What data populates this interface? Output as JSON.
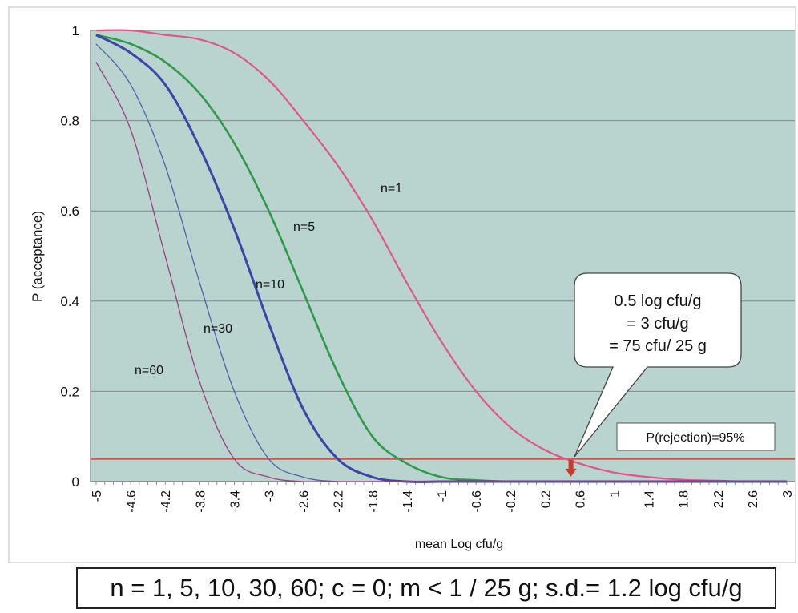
{
  "chart_data": {
    "type": "line",
    "xlabel": "mean Log cfu/g",
    "ylabel": "P (acceptance)",
    "xlim": [
      -5,
      3
    ],
    "ylim": [
      0,
      1
    ],
    "x_ticks": [
      "-5",
      "-4.6",
      "-4.2",
      "-3.8",
      "-3.4",
      "-3",
      "-2.6",
      "-2.2",
      "-1.8",
      "-1.4",
      "-1",
      "-0.6",
      "-0.2",
      "0.2",
      "0.6",
      "1",
      "1.4",
      "1.8",
      "2.2",
      "2.6",
      "3"
    ],
    "y_ticks": [
      "0",
      "0.2",
      "0.4",
      "0.6",
      "0.8",
      "1"
    ],
    "grid": "horizontal",
    "series": [
      {
        "name": "n=1",
        "color": "#e0558a",
        "x": [
          -5,
          -4.6,
          -4.2,
          -3.8,
          -3.4,
          -3,
          -2.6,
          -2.2,
          -1.8,
          -1.4,
          -1,
          -0.6,
          -0.2,
          0.2,
          0.6,
          1,
          1.4,
          1.8,
          2.2,
          2.6,
          3
        ],
        "y": [
          1,
          1,
          0.99,
          0.98,
          0.95,
          0.89,
          0.8,
          0.7,
          0.58,
          0.44,
          0.31,
          0.2,
          0.12,
          0.07,
          0.04,
          0.02,
          0.01,
          0.004,
          0.002,
          0,
          0
        ]
      },
      {
        "name": "n=5",
        "color": "#2f9a4a",
        "x": [
          -5,
          -4.6,
          -4.2,
          -3.8,
          -3.4,
          -3,
          -2.6,
          -2.2,
          -1.8,
          -1.4,
          -1,
          -0.6,
          -0.2,
          0.2,
          0.6,
          1,
          1.4,
          1.8,
          2.2,
          2.6,
          3
        ],
        "y": [
          0.99,
          0.97,
          0.93,
          0.86,
          0.75,
          0.6,
          0.42,
          0.24,
          0.1,
          0.04,
          0.01,
          0.003,
          0,
          0,
          0,
          0,
          0,
          0,
          0,
          0,
          0
        ]
      },
      {
        "name": "n=10",
        "color": "#3a47a8",
        "x": [
          -5,
          -4.6,
          -4.2,
          -3.8,
          -3.4,
          -3,
          -2.6,
          -2.2,
          -1.8,
          -1.4,
          -1,
          -0.6,
          -0.2,
          0.2,
          0.6,
          1,
          1.4,
          1.8,
          2.2,
          2.6,
          3
        ],
        "y": [
          0.99,
          0.95,
          0.88,
          0.74,
          0.56,
          0.35,
          0.16,
          0.05,
          0.01,
          0,
          0,
          0,
          0,
          0,
          0,
          0,
          0,
          0,
          0,
          0,
          0
        ]
      },
      {
        "name": "n=30",
        "color": "#5560a8",
        "x": [
          -5,
          -4.6,
          -4.2,
          -3.8,
          -3.4,
          -3,
          -2.6,
          -2.2,
          -1.8,
          -1.4,
          -1,
          -0.6,
          -0.2,
          0.2,
          0.6,
          1,
          1.4,
          1.8,
          2.2,
          2.6,
          3
        ],
        "y": [
          0.97,
          0.88,
          0.7,
          0.44,
          0.2,
          0.05,
          0.01,
          0,
          0,
          0,
          0,
          0,
          0,
          0,
          0,
          0,
          0,
          0,
          0,
          0,
          0
        ]
      },
      {
        "name": "n=60",
        "color": "#9a4080",
        "x": [
          -5,
          -4.6,
          -4.2,
          -3.8,
          -3.4,
          -3,
          -2.6,
          -2.2,
          -1.8,
          -1.4,
          -1,
          -0.6,
          -0.2,
          0.2,
          0.6,
          1,
          1.4,
          1.8,
          2.2,
          2.6,
          3
        ],
        "y": [
          0.93,
          0.78,
          0.5,
          0.22,
          0.05,
          0.01,
          0,
          0,
          0,
          0,
          0,
          0,
          0,
          0,
          0,
          0,
          0,
          0,
          0,
          0,
          0
        ]
      }
    ],
    "reference_line": {
      "y": 0.05,
      "color": "#d04040",
      "label": "P(rejection)=95%"
    },
    "callout": {
      "lines": [
        "0.5 log cfu/g",
        "= 3 cfu/g",
        "= 75 cfu/ 25 g"
      ],
      "x": 0.5,
      "y": 0.05
    },
    "marker": {
      "x": 0.5,
      "color": "#c93a2e"
    }
  },
  "footer": {
    "text": "n = 1, 5, 10, 30, 60;  c = 0;  m < 1 / 25 g; s.d.= 1.2 log cfu/g"
  },
  "colors": {
    "plot_background": "#b9d3cf",
    "frame": "#bcbcbc",
    "grid": "#7a8c8a"
  }
}
